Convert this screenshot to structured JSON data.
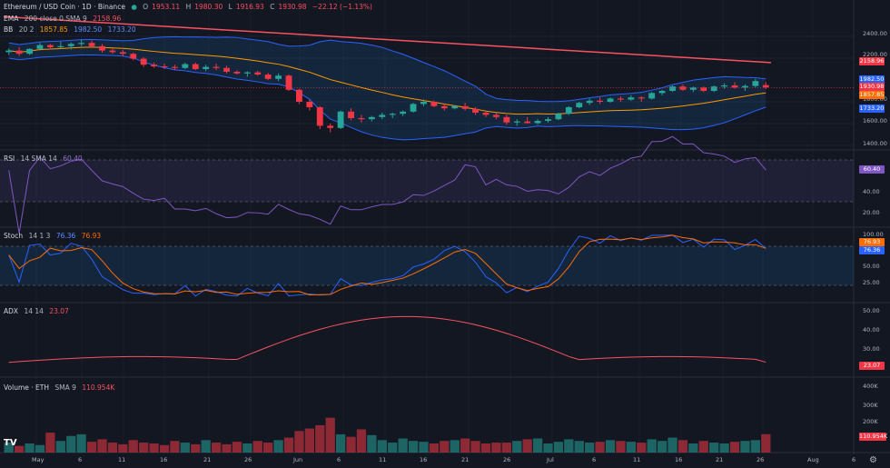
{
  "title": {
    "symbol": "Ethereum / USD Coin · 1D · Binance",
    "status_dot_color": "#26a69a",
    "ohlc": [
      {
        "k": "O",
        "v": "1953.11"
      },
      {
        "k": "H",
        "v": "1980.30"
      },
      {
        "k": "L",
        "v": "1916.93"
      },
      {
        "k": "C",
        "v": "1930.98"
      }
    ],
    "change": "−22.12 (−1.13%)"
  },
  "indicators": {
    "ema": {
      "name": "EMA",
      "params": "200 close 0 SMA 9",
      "value": "2158.96",
      "color": "#f7525f"
    },
    "bb": {
      "name": "BB",
      "params": "20 2",
      "values": [
        "1857.85",
        "1982.50",
        "1733.20"
      ],
      "colors": [
        "#ff9800",
        "#2962ff",
        "#2962ff"
      ]
    },
    "rsi": {
      "name": "RSI",
      "params": "14 SMA 14",
      "value": "60.40",
      "color": "#7e57c2"
    },
    "stoch": {
      "name": "Stoch",
      "params": "14 1 3",
      "values": [
        "76.36",
        "76.93"
      ],
      "colors": [
        "#2962ff",
        "#ff6d00"
      ]
    },
    "adx": {
      "name": "ADX",
      "params": "14 14",
      "value": "23.07",
      "color": "#f7525f"
    },
    "volume": {
      "name": "Volume · ETH",
      "params": "SMA 9",
      "value": "110.954K",
      "color": "#f7525f"
    }
  },
  "price_axis": {
    "ticks": [
      "2400.00",
      "2200.00",
      "2000.00",
      "1800.00",
      "1600.00",
      "1400.00"
    ],
    "tags": [
      {
        "text": "2158.96",
        "color": "#f23645",
        "name": "ema-price-tag"
      },
      {
        "text": "1982.50",
        "color": "#2962ff",
        "name": "bb-upper-tag"
      },
      {
        "text": "1930.98",
        "color": "#f23645",
        "name": "last-price-tag"
      },
      {
        "text": "1857.85",
        "color": "#ff6d00",
        "name": "bb-basis-tag"
      },
      {
        "text": "1733.20",
        "color": "#2962ff",
        "name": "bb-lower-tag"
      }
    ]
  },
  "rsi_axis": {
    "ticks": [
      "40.00",
      "20.00"
    ],
    "tag": "60.40"
  },
  "stoch_axis": {
    "ticks": [
      "100.00",
      "50.00",
      "25.00"
    ],
    "tags": [
      "76.93",
      "76.36"
    ]
  },
  "adx_axis": {
    "ticks": [
      "50.00",
      "40.00",
      "30.00",
      "20.00"
    ],
    "tag": "23.07"
  },
  "volume_axis": {
    "ticks": [
      "400K",
      "300K",
      "200K"
    ],
    "tag": "110.954K"
  },
  "time_axis": [
    "May",
    "6",
    "11",
    "16",
    "21",
    "26",
    "Jun",
    "6",
    "11",
    "16",
    "21",
    "26",
    "Jul",
    "6",
    "11",
    "16",
    "21",
    "26",
    "Aug",
    "6"
  ],
  "logo_text": "TV",
  "settings_icon": "gear-icon",
  "chart_data": {
    "type": "candlestick",
    "timeframe": "1D",
    "candles_ohlc": [
      [
        2255,
        2290,
        2230,
        2270
      ],
      [
        2270,
        2300,
        2220,
        2240
      ],
      [
        2240,
        2290,
        2230,
        2285
      ],
      [
        2285,
        2340,
        2270,
        2320
      ],
      [
        2320,
        2330,
        2280,
        2300
      ],
      [
        2300,
        2350,
        2290,
        2310
      ],
      [
        2310,
        2345,
        2280,
        2330
      ],
      [
        2330,
        2370,
        2310,
        2340
      ],
      [
        2340,
        2360,
        2300,
        2310
      ],
      [
        2310,
        2330,
        2250,
        2270
      ],
      [
        2270,
        2290,
        2240,
        2255
      ],
      [
        2255,
        2275,
        2220,
        2240
      ],
      [
        2240,
        2250,
        2180,
        2195
      ],
      [
        2195,
        2210,
        2120,
        2140
      ],
      [
        2140,
        2160,
        2110,
        2125
      ],
      [
        2125,
        2150,
        2100,
        2120
      ],
      [
        2120,
        2140,
        2090,
        2110
      ],
      [
        2110,
        2160,
        2100,
        2145
      ],
      [
        2145,
        2160,
        2090,
        2100
      ],
      [
        2100,
        2140,
        2080,
        2120
      ],
      [
        2120,
        2150,
        2090,
        2110
      ],
      [
        2110,
        2130,
        2060,
        2075
      ],
      [
        2075,
        2090,
        2050,
        2060
      ],
      [
        2060,
        2080,
        2030,
        2070
      ],
      [
        2070,
        2085,
        2040,
        2050
      ],
      [
        2050,
        2065,
        2000,
        2010
      ],
      [
        2010,
        2060,
        1990,
        2040
      ],
      [
        2040,
        2050,
        1900,
        1910
      ],
      [
        1910,
        1920,
        1780,
        1800
      ],
      [
        1800,
        1820,
        1720,
        1750
      ],
      [
        1750,
        1760,
        1550,
        1580
      ],
      [
        1580,
        1600,
        1520,
        1560
      ],
      [
        1560,
        1720,
        1550,
        1710
      ],
      [
        1710,
        1740,
        1630,
        1650
      ],
      [
        1650,
        1680,
        1610,
        1640
      ],
      [
        1640,
        1670,
        1620,
        1660
      ],
      [
        1660,
        1700,
        1640,
        1680
      ],
      [
        1680,
        1700,
        1650,
        1690
      ],
      [
        1690,
        1720,
        1670,
        1710
      ],
      [
        1710,
        1790,
        1700,
        1780
      ],
      [
        1780,
        1820,
        1760,
        1800
      ],
      [
        1800,
        1810,
        1750,
        1760
      ],
      [
        1760,
        1780,
        1720,
        1740
      ],
      [
        1740,
        1770,
        1730,
        1760
      ],
      [
        1760,
        1790,
        1720,
        1735
      ],
      [
        1735,
        1750,
        1680,
        1700
      ],
      [
        1700,
        1720,
        1660,
        1680
      ],
      [
        1680,
        1700,
        1640,
        1660
      ],
      [
        1660,
        1680,
        1590,
        1610
      ],
      [
        1610,
        1640,
        1580,
        1620
      ],
      [
        1620,
        1660,
        1600,
        1605
      ],
      [
        1605,
        1640,
        1590,
        1625
      ],
      [
        1625,
        1660,
        1610,
        1640
      ],
      [
        1640,
        1700,
        1630,
        1690
      ],
      [
        1690,
        1760,
        1680,
        1750
      ],
      [
        1750,
        1800,
        1740,
        1790
      ],
      [
        1790,
        1830,
        1770,
        1810
      ],
      [
        1810,
        1840,
        1780,
        1800
      ],
      [
        1800,
        1840,
        1790,
        1830
      ],
      [
        1830,
        1850,
        1800,
        1820
      ],
      [
        1820,
        1860,
        1810,
        1840
      ],
      [
        1840,
        1850,
        1800,
        1830
      ],
      [
        1830,
        1890,
        1820,
        1880
      ],
      [
        1880,
        1910,
        1860,
        1900
      ],
      [
        1900,
        1950,
        1890,
        1940
      ],
      [
        1940,
        1960,
        1900,
        1910
      ],
      [
        1910,
        1940,
        1890,
        1930
      ],
      [
        1930,
        1940,
        1890,
        1900
      ],
      [
        1900,
        1950,
        1890,
        1940
      ],
      [
        1940,
        1970,
        1920,
        1950
      ],
      [
        1950,
        1980,
        1920,
        1930
      ],
      [
        1930,
        1960,
        1900,
        1945
      ],
      [
        1945,
        2010,
        1930,
        1990
      ],
      [
        1953.11,
        1980.3,
        1916.93,
        1930.98
      ]
    ],
    "ema_200_approx": [
      2580,
      2440,
      2300,
      2158.96
    ],
    "rsi_last": 60.4,
    "stoch_k_last": 76.36,
    "stoch_d_last": 76.93,
    "adx_last": 23.07,
    "volume_last": "110.954K"
  }
}
